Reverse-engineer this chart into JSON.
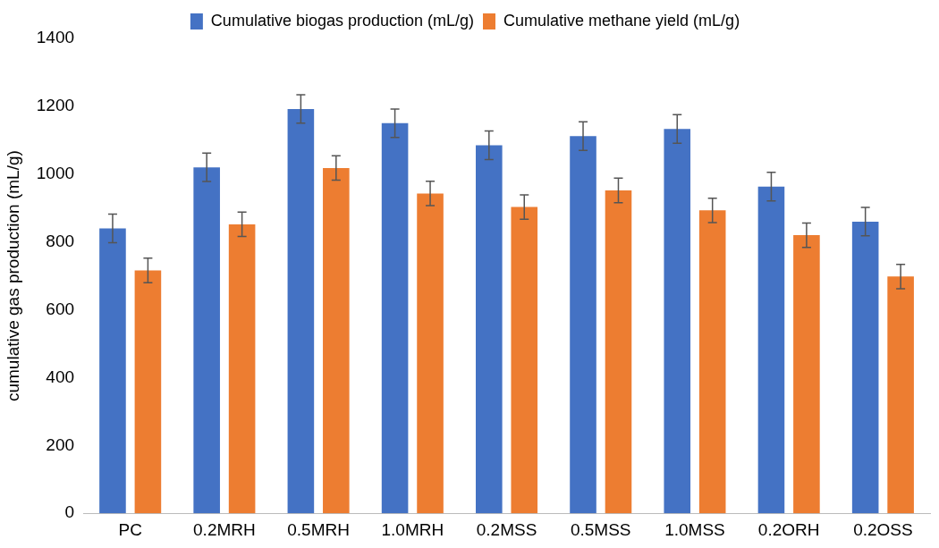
{
  "chart_data": {
    "type": "bar",
    "ylabel": "cumulative gas production (mL/g)",
    "categories": [
      "PC",
      "0.2MRH",
      "0.5MRH",
      "1.0MRH",
      "0.2MSS",
      "0.5MSS",
      "1.0MSS",
      "0.2ORH",
      "0.2OSS"
    ],
    "series": [
      {
        "name": "Cumulative biogas production (mL/g)",
        "color": "#4472c4",
        "values": [
          840,
          1020,
          1192,
          1150,
          1085,
          1112,
          1133,
          963,
          860
        ],
        "errors": [
          42,
          42,
          42,
          42,
          42,
          42,
          42,
          42,
          42
        ]
      },
      {
        "name": "Cumulative methane yield (mL/g)",
        "color": "#ed7d31",
        "values": [
          716,
          852,
          1018,
          943,
          903,
          952,
          893,
          820,
          698
        ],
        "errors": [
          36,
          36,
          36,
          36,
          36,
          36,
          36,
          36,
          36
        ]
      }
    ],
    "ylim": [
      0,
      1400
    ],
    "yticks": [
      0,
      200,
      400,
      600,
      800,
      1000,
      1200,
      1400
    ],
    "grid": false,
    "legend": "top"
  }
}
